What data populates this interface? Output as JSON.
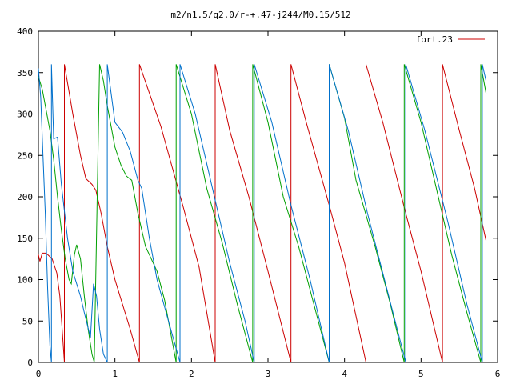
{
  "chart_data": {
    "type": "line",
    "title": "m2/n1.5/q2.0/r-+.47-j244/M0.15/512",
    "xlabel": "",
    "ylabel": "",
    "xlim": [
      0,
      6
    ],
    "ylim": [
      0,
      400
    ],
    "x_ticks": [
      "0",
      "1",
      "2",
      "3",
      "4",
      "5",
      "6"
    ],
    "y_ticks": [
      "0",
      "50",
      "100",
      "150",
      "200",
      "250",
      "300",
      "350",
      "400"
    ],
    "grid": false,
    "legend_position": "top-right",
    "legend": [
      {
        "label": "fort.23",
        "color": "#cc0000"
      }
    ],
    "series": [
      {
        "name": "fort.23",
        "color": "#cc0000",
        "points": [
          [
            0.0,
            130
          ],
          [
            0.02,
            122
          ],
          [
            0.05,
            132
          ],
          [
            0.1,
            132
          ],
          [
            0.18,
            125
          ],
          [
            0.24,
            108
          ],
          [
            0.28,
            80
          ],
          [
            0.31,
            40
          ],
          [
            0.34,
            0
          ],
          [
            0.34,
            360
          ],
          [
            0.45,
            300
          ],
          [
            0.55,
            250
          ],
          [
            0.62,
            222
          ],
          [
            0.7,
            215
          ],
          [
            0.75,
            208
          ],
          [
            0.82,
            180
          ],
          [
            0.9,
            140
          ],
          [
            1.0,
            100
          ],
          [
            1.1,
            70
          ],
          [
            1.2,
            40
          ],
          [
            1.32,
            0
          ],
          [
            1.32,
            360
          ],
          [
            1.6,
            285
          ],
          [
            1.9,
            185
          ],
          [
            2.1,
            115
          ],
          [
            2.31,
            0
          ],
          [
            2.31,
            360
          ],
          [
            2.5,
            280
          ],
          [
            2.75,
            200
          ],
          [
            3.0,
            110
          ],
          [
            3.3,
            0
          ],
          [
            3.3,
            360
          ],
          [
            3.5,
            290
          ],
          [
            3.8,
            190
          ],
          [
            4.0,
            120
          ],
          [
            4.28,
            0
          ],
          [
            4.28,
            360
          ],
          [
            4.5,
            290
          ],
          [
            4.8,
            180
          ],
          [
            5.0,
            110
          ],
          [
            5.28,
            0
          ],
          [
            5.28,
            360
          ],
          [
            5.5,
            280
          ],
          [
            5.7,
            210
          ],
          [
            5.85,
            147
          ]
        ]
      },
      {
        "color": "#00a000",
        "points": [
          [
            0.0,
            345
          ],
          [
            0.05,
            330
          ],
          [
            0.1,
            305
          ],
          [
            0.15,
            280
          ],
          [
            0.2,
            245
          ],
          [
            0.25,
            200
          ],
          [
            0.3,
            160
          ],
          [
            0.35,
            125
          ],
          [
            0.4,
            100
          ],
          [
            0.43,
            95
          ],
          [
            0.47,
            130
          ],
          [
            0.5,
            142
          ],
          [
            0.55,
            125
          ],
          [
            0.6,
            80
          ],
          [
            0.65,
            40
          ],
          [
            0.7,
            10
          ],
          [
            0.73,
            0
          ],
          [
            0.8,
            360
          ],
          [
            0.85,
            340
          ],
          [
            0.9,
            310
          ],
          [
            0.95,
            285
          ],
          [
            1.0,
            260
          ],
          [
            1.08,
            238
          ],
          [
            1.15,
            225
          ],
          [
            1.22,
            220
          ],
          [
            1.3,
            180
          ],
          [
            1.4,
            140
          ],
          [
            1.55,
            110
          ],
          [
            1.65,
            75
          ],
          [
            1.8,
            0
          ],
          [
            1.8,
            360
          ],
          [
            2.0,
            300
          ],
          [
            2.2,
            210
          ],
          [
            2.4,
            145
          ],
          [
            2.6,
            70
          ],
          [
            2.8,
            0
          ],
          [
            2.8,
            360
          ],
          [
            3.0,
            290
          ],
          [
            3.2,
            200
          ],
          [
            3.4,
            140
          ],
          [
            3.6,
            70
          ],
          [
            3.8,
            0
          ],
          [
            3.8,
            360
          ],
          [
            4.0,
            295
          ],
          [
            4.15,
            220
          ],
          [
            4.4,
            140
          ],
          [
            4.6,
            70
          ],
          [
            4.78,
            0
          ],
          [
            4.78,
            360
          ],
          [
            5.0,
            290
          ],
          [
            5.2,
            210
          ],
          [
            5.4,
            130
          ],
          [
            5.6,
            60
          ],
          [
            5.78,
            0
          ],
          [
            5.78,
            360
          ],
          [
            5.85,
            325
          ]
        ]
      },
      {
        "color": "#0070cc",
        "points": [
          [
            0.0,
            355
          ],
          [
            0.03,
            320
          ],
          [
            0.06,
            250
          ],
          [
            0.09,
            180
          ],
          [
            0.12,
            90
          ],
          [
            0.15,
            20
          ],
          [
            0.17,
            0
          ],
          [
            0.17,
            360
          ],
          [
            0.2,
            270
          ],
          [
            0.25,
            272
          ],
          [
            0.3,
            215
          ],
          [
            0.38,
            150
          ],
          [
            0.45,
            110
          ],
          [
            0.55,
            80
          ],
          [
            0.6,
            60
          ],
          [
            0.68,
            30
          ],
          [
            0.72,
            95
          ],
          [
            0.76,
            80
          ],
          [
            0.8,
            40
          ],
          [
            0.85,
            10
          ],
          [
            0.9,
            0
          ],
          [
            0.9,
            360
          ],
          [
            1.0,
            290
          ],
          [
            1.1,
            278
          ],
          [
            1.2,
            255
          ],
          [
            1.3,
            220
          ],
          [
            1.35,
            210
          ],
          [
            1.45,
            150
          ],
          [
            1.55,
            100
          ],
          [
            1.7,
            50
          ],
          [
            1.85,
            0
          ],
          [
            1.85,
            360
          ],
          [
            2.05,
            300
          ],
          [
            2.3,
            200
          ],
          [
            2.5,
            120
          ],
          [
            2.7,
            50
          ],
          [
            2.82,
            0
          ],
          [
            2.82,
            360
          ],
          [
            3.05,
            290
          ],
          [
            3.3,
            190
          ],
          [
            3.55,
            100
          ],
          [
            3.8,
            0
          ],
          [
            3.8,
            360
          ],
          [
            4.05,
            280
          ],
          [
            4.3,
            180
          ],
          [
            4.55,
            90
          ],
          [
            4.8,
            0
          ],
          [
            4.8,
            360
          ],
          [
            5.05,
            280
          ],
          [
            5.35,
            170
          ],
          [
            5.6,
            70
          ],
          [
            5.8,
            0
          ],
          [
            5.8,
            360
          ],
          [
            5.85,
            340
          ]
        ]
      }
    ]
  }
}
